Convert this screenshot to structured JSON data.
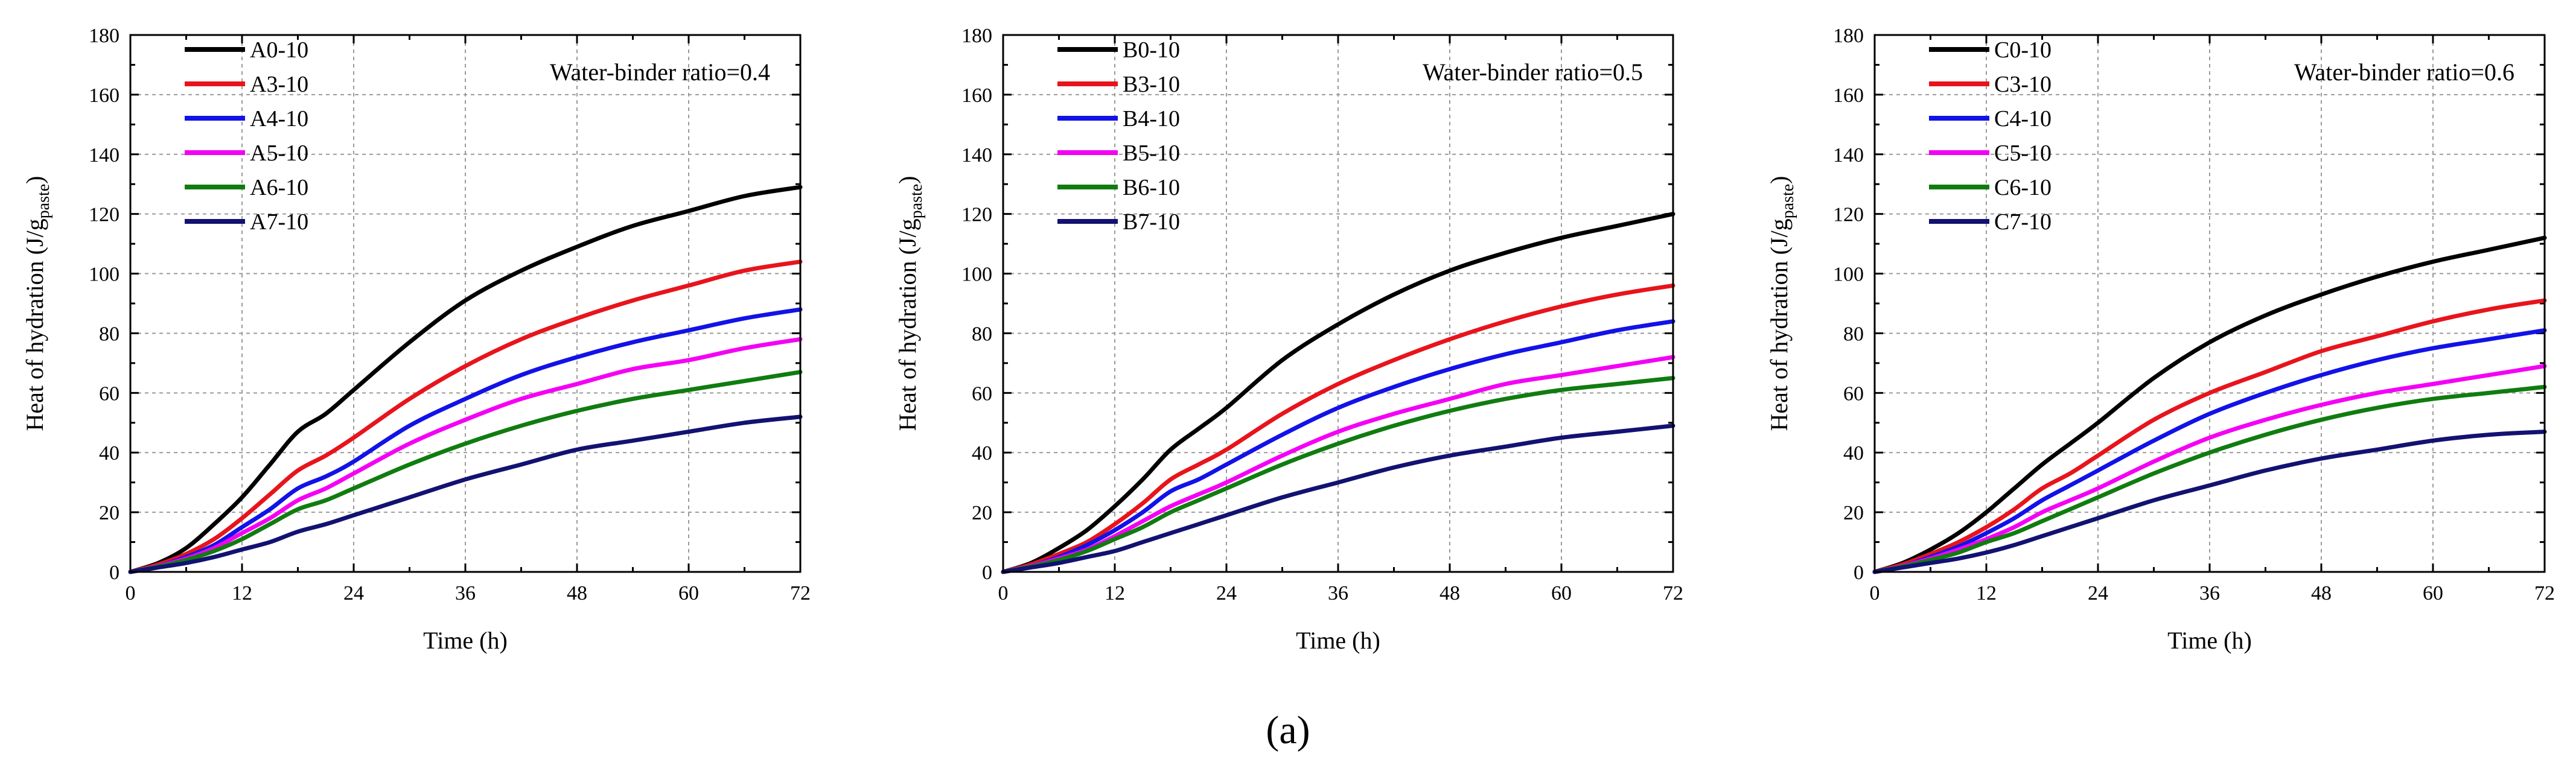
{
  "figure_caption": "(a)",
  "chart_data": [
    {
      "type": "line",
      "annotation": "Water-binder ratio=0.4",
      "xlabel": "Time (h)",
      "ylabel": "Heat of hydration (J/g",
      "ylabel_sub": "paste",
      "ylabel_close": ")",
      "xlim": [
        0,
        72
      ],
      "ylim": [
        0,
        180
      ],
      "x_ticks": [
        0,
        12,
        24,
        36,
        48,
        60,
        72
      ],
      "y_ticks": [
        0,
        20,
        40,
        60,
        80,
        100,
        120,
        140,
        160,
        180
      ],
      "grid": true,
      "legend_position": "top-left",
      "x": [
        0,
        3,
        6,
        9,
        12,
        15,
        18,
        21,
        24,
        30,
        36,
        42,
        48,
        54,
        60,
        66,
        72
      ],
      "series": [
        {
          "name": "A0-10",
          "color": "#000000",
          "values": [
            0,
            3,
            8,
            16,
            25,
            36,
            47,
            53,
            61,
            77,
            91,
            101,
            109,
            116,
            121,
            126,
            129
          ]
        },
        {
          "name": "A3-10",
          "color": "#e8141c",
          "values": [
            0,
            2.5,
            6,
            11,
            18,
            26,
            34,
            39,
            45,
            58,
            69,
            78,
            85,
            91,
            96,
            101,
            104
          ]
        },
        {
          "name": "A4-10",
          "color": "#1212e8",
          "values": [
            0,
            2,
            5,
            9,
            15,
            21,
            28,
            32,
            37,
            49,
            58,
            66,
            72,
            77,
            81,
            85,
            88
          ]
        },
        {
          "name": "A5-10",
          "color": "#f400f4",
          "values": [
            0,
            2,
            4.5,
            8,
            13,
            18,
            24,
            28,
            33,
            43,
            51,
            58,
            63,
            68,
            71,
            75,
            78
          ]
        },
        {
          "name": "A6-10",
          "color": "#107c10",
          "values": [
            0,
            1.8,
            4,
            7,
            11,
            16,
            21,
            24,
            28,
            36,
            43,
            49,
            54,
            58,
            61,
            64,
            67
          ]
        },
        {
          "name": "A7-10",
          "color": "#121272",
          "values": [
            0,
            1.5,
            3,
            5,
            7.5,
            10,
            13.5,
            16,
            19,
            25,
            31,
            36,
            41,
            44,
            47,
            50,
            52
          ]
        }
      ]
    },
    {
      "type": "line",
      "annotation": "Water-binder ratio=0.5",
      "xlabel": "Time (h)",
      "ylabel": "Heat of hydration (J/g",
      "ylabel_sub": "paste",
      "ylabel_close": ")",
      "xlim": [
        0,
        72
      ],
      "ylim": [
        0,
        180
      ],
      "x_ticks": [
        0,
        12,
        24,
        36,
        48,
        60,
        72
      ],
      "y_ticks": [
        0,
        20,
        40,
        60,
        80,
        100,
        120,
        140,
        160,
        180
      ],
      "grid": true,
      "legend_position": "top-left",
      "x": [
        0,
        3,
        6,
        9,
        12,
        15,
        18,
        21,
        24,
        30,
        36,
        42,
        48,
        54,
        60,
        66,
        72
      ],
      "series": [
        {
          "name": "B0-10",
          "color": "#000000",
          "values": [
            0,
            3,
            8,
            14,
            22,
            31,
            41,
            48,
            55,
            71,
            83,
            93,
            101,
            107,
            112,
            116,
            120
          ]
        },
        {
          "name": "B3-10",
          "color": "#e8141c",
          "values": [
            0,
            2.5,
            6,
            10,
            16,
            23,
            31,
            36,
            41,
            53,
            63,
            71,
            78,
            84,
            89,
            93,
            96
          ]
        },
        {
          "name": "B4-10",
          "color": "#1212e8",
          "values": [
            0,
            2,
            5,
            9,
            14,
            20,
            27,
            31,
            36,
            46,
            55,
            62,
            68,
            73,
            77,
            81,
            84
          ]
        },
        {
          "name": "B5-10",
          "color": "#f400f4",
          "values": [
            0,
            2,
            4.5,
            7.5,
            12,
            17,
            22,
            26,
            30,
            39,
            47,
            53,
            58,
            63,
            66,
            69,
            72
          ]
        },
        {
          "name": "B6-10",
          "color": "#107c10",
          "values": [
            0,
            1.8,
            4,
            7,
            11,
            15,
            20,
            24,
            28,
            36,
            43,
            49,
            54,
            58,
            61,
            63,
            65
          ]
        },
        {
          "name": "B7-10",
          "color": "#121272",
          "values": [
            0,
            1.5,
            3,
            5,
            7,
            10,
            13,
            16,
            19,
            25,
            30,
            35,
            39,
            42,
            45,
            47,
            49
          ]
        }
      ]
    },
    {
      "type": "line",
      "annotation": "Water-binder ratio=0.6",
      "xlabel": "Time (h)",
      "ylabel": "Heat of hydration (J/g",
      "ylabel_sub": "paste",
      "ylabel_close": ")",
      "xlim": [
        0,
        72
      ],
      "ylim": [
        0,
        180
      ],
      "x_ticks": [
        0,
        12,
        24,
        36,
        48,
        60,
        72
      ],
      "y_ticks": [
        0,
        20,
        40,
        60,
        80,
        100,
        120,
        140,
        160,
        180
      ],
      "grid": true,
      "legend_position": "top-left",
      "x": [
        0,
        3,
        6,
        9,
        12,
        15,
        18,
        21,
        24,
        30,
        36,
        42,
        48,
        54,
        60,
        66,
        72
      ],
      "series": [
        {
          "name": "C0-10",
          "color": "#000000",
          "values": [
            0,
            3,
            7.5,
            13,
            20,
            28,
            36,
            43,
            50,
            65,
            77,
            86,
            93,
            99,
            104,
            108,
            112
          ]
        },
        {
          "name": "C3-10",
          "color": "#e8141c",
          "values": [
            0,
            2.5,
            6,
            10,
            15,
            21,
            28,
            33,
            39,
            51,
            60,
            67,
            74,
            79,
            84,
            88,
            91
          ]
        },
        {
          "name": "C4-10",
          "color": "#1212e8",
          "values": [
            0,
            2,
            5,
            8.5,
            13,
            18,
            24,
            29,
            34,
            44,
            53,
            60,
            66,
            71,
            75,
            78,
            81
          ]
        },
        {
          "name": "C5-10",
          "color": "#f400f4",
          "values": [
            0,
            2,
            4.5,
            7.5,
            11,
            15,
            20,
            24,
            28,
            37,
            45,
            51,
            56,
            60,
            63,
            66,
            69
          ]
        },
        {
          "name": "C6-10",
          "color": "#107c10",
          "values": [
            0,
            1.8,
            4,
            6.5,
            10,
            13,
            17,
            21,
            25,
            33,
            40,
            46,
            51,
            55,
            58,
            60,
            62
          ]
        },
        {
          "name": "C7-10",
          "color": "#121272",
          "values": [
            0,
            1.5,
            3,
            4.5,
            6.5,
            9,
            12,
            15,
            18,
            24,
            29,
            34,
            38,
            41,
            44,
            46,
            47
          ]
        }
      ]
    }
  ]
}
